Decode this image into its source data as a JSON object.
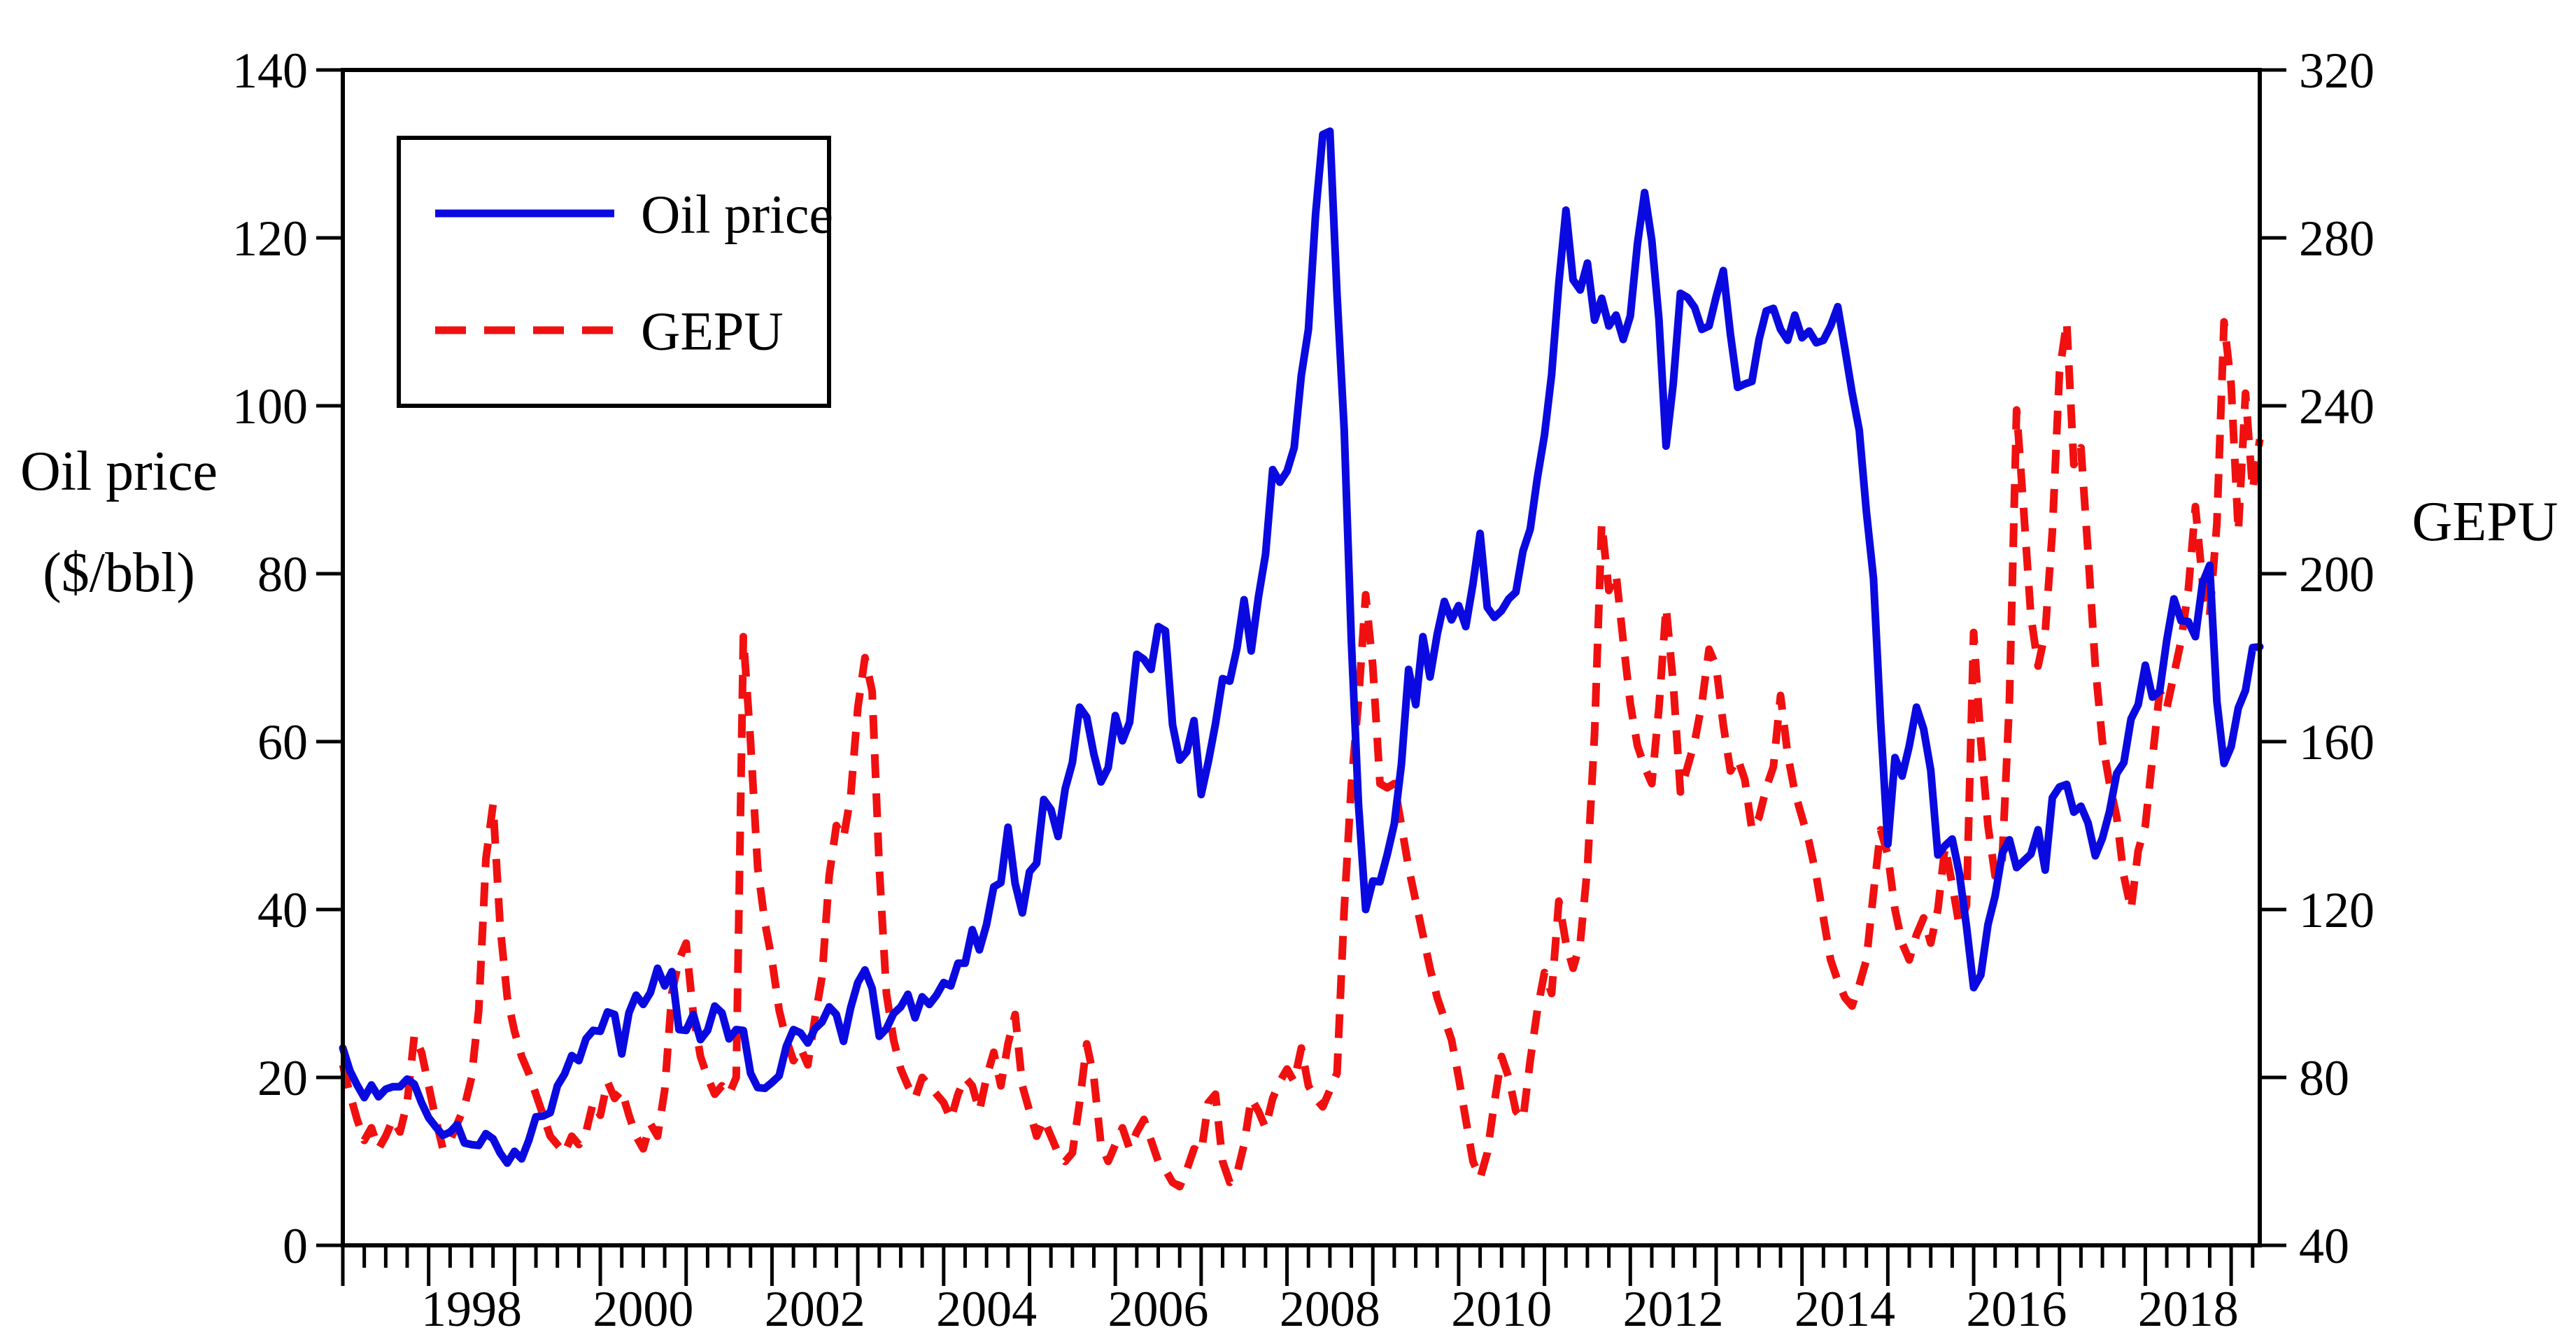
{
  "chart_data": {
    "type": "line",
    "title": "",
    "x_axis": {
      "start_year": 1997,
      "start_month": 1,
      "end_year": 2019,
      "end_month": 5,
      "frequency": "monthly",
      "labeled_years": [
        1998,
        2000,
        2002,
        2004,
        2006,
        2008,
        2010,
        2012,
        2014,
        2016,
        2018
      ],
      "minor_tick": "quarterly",
      "major_tick": "yearly"
    },
    "y_left": {
      "label_line1": "Oil price",
      "label_line2": "($/bbl)",
      "min": 0,
      "max": 140,
      "step": 20,
      "tick_values": [
        0,
        20,
        40,
        60,
        80,
        100,
        120,
        140
      ]
    },
    "y_right": {
      "label": "GEPU",
      "min": 40,
      "max": 320,
      "step": 40,
      "tick_values": [
        40,
        80,
        120,
        160,
        200,
        240,
        280,
        320
      ]
    },
    "legend": [
      {
        "label": "Oil price",
        "style": "solid",
        "color": "#0a0ae0"
      },
      {
        "label": "GEPU",
        "style": "dashed",
        "color": "#f01010"
      }
    ],
    "axis_color": "#000000",
    "background_color": "#ffffff",
    "grid": "off",
    "legend_position": "top-left-inside",
    "series": [
      {
        "name": "Oil price",
        "axis": "left",
        "color": "#0a0ae0",
        "line": "solid",
        "values_by_year": {
          "1997": [
            23.5,
            20.8,
            19.1,
            17.6,
            19.1,
            17.7,
            18.6,
            18.9,
            18.9,
            19.8,
            19.2,
            17.0
          ],
          "1998": [
            15.2,
            14.1,
            13.1,
            13.5,
            14.4,
            12.2,
            12.0,
            11.9,
            13.3,
            12.7,
            11.0,
            9.8
          ],
          "1999": [
            11.2,
            10.3,
            12.5,
            15.3,
            15.4,
            15.8,
            19.0,
            20.4,
            22.6,
            22.0,
            24.6,
            25.6
          ],
          "2000": [
            25.5,
            27.8,
            27.5,
            22.8,
            27.7,
            29.8,
            28.7,
            30.1,
            33.0,
            30.9,
            32.6,
            25.7
          ],
          "2001": [
            25.6,
            27.5,
            24.5,
            25.6,
            28.5,
            27.7,
            24.6,
            25.7,
            25.6,
            20.5,
            18.8,
            18.7
          ],
          "2002": [
            19.4,
            20.2,
            23.7,
            25.7,
            25.3,
            24.1,
            25.8,
            26.6,
            28.4,
            27.5,
            24.3,
            28.3
          ],
          "2003": [
            31.3,
            32.8,
            30.6,
            24.9,
            25.8,
            27.6,
            28.4,
            29.9,
            27.1,
            29.6,
            28.7,
            29.8
          ],
          "2004": [
            31.3,
            30.9,
            33.6,
            33.6,
            37.6,
            35.2,
            38.2,
            42.7,
            43.2,
            49.8,
            43.1,
            39.6
          ],
          "2005": [
            44.5,
            45.5,
            53.1,
            51.9,
            48.7,
            54.4,
            57.5,
            64.1,
            62.9,
            58.5,
            55.2,
            56.9
          ],
          "2006": [
            63.1,
            60.1,
            62.3,
            70.4,
            69.8,
            68.6,
            73.7,
            73.2,
            62.0,
            57.8,
            58.8,
            62.5
          ],
          "2007": [
            53.7,
            57.6,
            62.1,
            67.5,
            67.2,
            71.1,
            76.9,
            70.8,
            77.2,
            82.3,
            92.4,
            90.9
          ],
          "2008": [
            92.2,
            95.0,
            103.6,
            109.1,
            122.8,
            132.3,
            132.7,
            113.2,
            97.2,
            71.9,
            52.5,
            40.0
          ],
          "2009": [
            43.4,
            43.3,
            46.5,
            50.2,
            57.3,
            68.6,
            64.4,
            72.5,
            67.7,
            72.8,
            76.7,
            74.5
          ],
          "2010": [
            76.2,
            73.7,
            78.8,
            84.8,
            76.0,
            74.8,
            75.6,
            77.0,
            77.8,
            82.7,
            85.3,
            91.4
          ],
          "2011": [
            96.5,
            103.7,
            114.6,
            123.3,
            115.0,
            113.8,
            117.0,
            110.2,
            112.8,
            109.5,
            110.8,
            107.9
          ],
          "2012": [
            110.7,
            119.3,
            125.4,
            119.7,
            110.3,
            95.2,
            102.6,
            113.4,
            112.9,
            111.7,
            109.1,
            109.5
          ],
          "2013": [
            113.0,
            116.1,
            108.5,
            102.2,
            102.6,
            102.9,
            107.9,
            111.3,
            111.6,
            109.1,
            107.8,
            110.8
          ],
          "2014": [
            108.1,
            108.9,
            107.5,
            107.8,
            109.5,
            111.8,
            106.8,
            101.6,
            97.1,
            87.4,
            79.4,
            62.3
          ],
          "2015": [
            47.8,
            58.1,
            55.9,
            59.5,
            64.1,
            61.5,
            56.6,
            46.5,
            47.6,
            48.4,
            44.3,
            38.0
          ],
          "2016": [
            30.7,
            32.2,
            38.2,
            41.6,
            46.7,
            48.3,
            45.0,
            45.8,
            46.6,
            49.5,
            44.7,
            53.3
          ],
          "2017": [
            54.6,
            54.9,
            51.6,
            52.3,
            50.3,
            46.4,
            48.5,
            51.7,
            56.2,
            57.5,
            62.7,
            64.4
          ],
          "2018": [
            69.1,
            65.3,
            66.0,
            72.1,
            77.0,
            74.4,
            74.3,
            72.5,
            78.9,
            81.0,
            64.8,
            57.4
          ],
          "2019": [
            59.4,
            64.0,
            66.1,
            71.2,
            71.3
          ]
        }
      },
      {
        "name": "GEPU",
        "axis": "right",
        "color": "#f01010",
        "line": "dashed",
        "values_by_year": {
          "1997": [
            83,
            76,
            70,
            65,
            68,
            63,
            66,
            70,
            67,
            74,
            90,
            86
          ],
          "1998": [
            78,
            70,
            63,
            65,
            69,
            73,
            80,
            96,
            132,
            145,
            116,
            99
          ],
          "1999": [
            91,
            85,
            81,
            76,
            71,
            66,
            64,
            62,
            66,
            64,
            67,
            74
          ],
          "2000": [
            71,
            79,
            75,
            77,
            71,
            66,
            63,
            69,
            66,
            77,
            100,
            108
          ],
          "2001": [
            112,
            95,
            85,
            80,
            76,
            78,
            76,
            80,
            185,
            160,
            130,
            117
          ],
          "2002": [
            108,
            96,
            89,
            84,
            87,
            83,
            94,
            104,
            128,
            140,
            137,
            147
          ],
          "2003": [
            168,
            180,
            172,
            130,
            100,
            89,
            82,
            78,
            75,
            80,
            78,
            76
          ],
          "2004": [
            74,
            70,
            76,
            80,
            78,
            72,
            80,
            86,
            78,
            88,
            95,
            78
          ],
          "2005": [
            72,
            66,
            70,
            66,
            62,
            60,
            62,
            74,
            88,
            80,
            64,
            60
          ],
          "2006": [
            64,
            68,
            63,
            67,
            70,
            65,
            60,
            58,
            55,
            54,
            58,
            63
          ],
          "2007": [
            62,
            74,
            76,
            60,
            55,
            57,
            64,
            75,
            72,
            68,
            75,
            79
          ],
          "2008": [
            82,
            79,
            87,
            78,
            75,
            73,
            77,
            81,
            120,
            150,
            170,
            195
          ],
          "2009": [
            178,
            150,
            149,
            150,
            140,
            130,
            122,
            114,
            106,
            99,
            94,
            89
          ],
          "2010": [
            80,
            70,
            60,
            56,
            62,
            74,
            85,
            80,
            72,
            70,
            84,
            96
          ],
          "2011": [
            105,
            100,
            122,
            112,
            106,
            112,
            130,
            162,
            212,
            196,
            200,
            184
          ],
          "2012": [
            169,
            159,
            154,
            150,
            168,
            192,
            174,
            148,
            154,
            160,
            169,
            182
          ],
          "2013": [
            178,
            164,
            153,
            156,
            151,
            139,
            142,
            149,
            154,
            171,
            157,
            148
          ],
          "2014": [
            142,
            136,
            128,
            118,
            108,
            103,
            99,
            97,
            102,
            108,
            124,
            139
          ],
          "2015": [
            133,
            120,
            112,
            108,
            114,
            118,
            112,
            120,
            135,
            126,
            116,
            121
          ],
          "2016": [
            186,
            160,
            140,
            128,
            132,
            170,
            239,
            215,
            190,
            178,
            186,
            210
          ],
          "2017": [
            248,
            260,
            226,
            230,
            205,
            178,
            160,
            150,
            142,
            128,
            120,
            134
          ],
          "2018": [
            140,
            156,
            172,
            168,
            176,
            184,
            196,
            216,
            198,
            190,
            212,
            260
          ],
          "2019": [
            245,
            210,
            243,
            220,
            232
          ]
        }
      }
    ]
  }
}
